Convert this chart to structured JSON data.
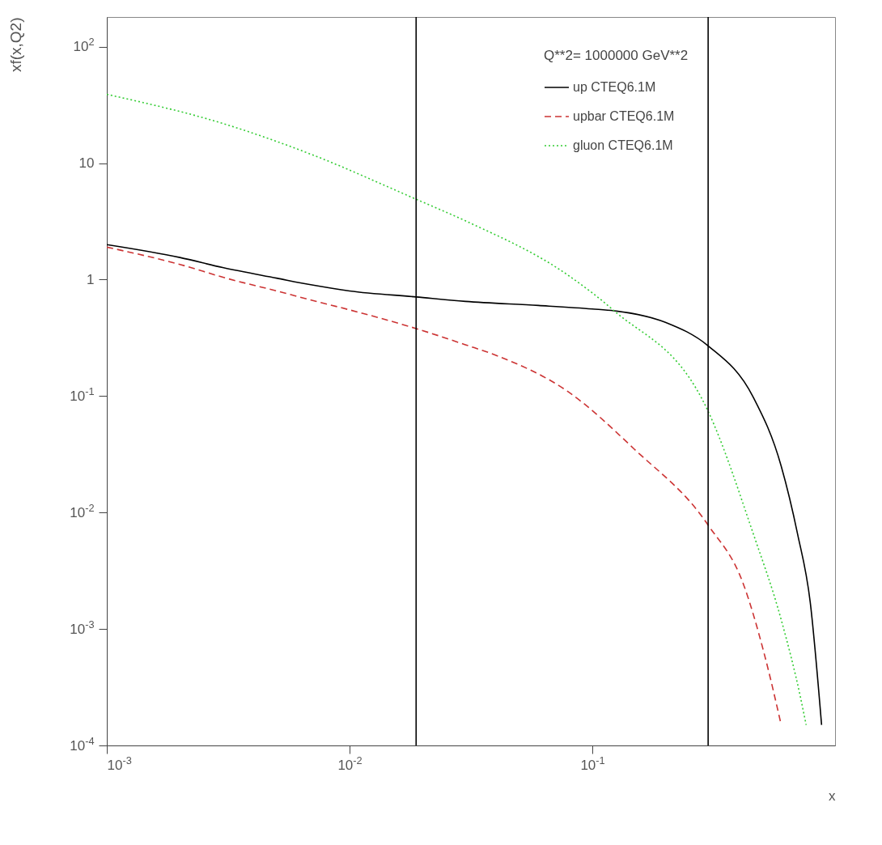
{
  "chart_data": {
    "type": "line",
    "xlabel": "x",
    "ylabel": "xf(x,Q2)",
    "legend_title": "Q**2=   1000000 GeV**2",
    "log": "xy",
    "grid": false,
    "legend": "top right",
    "marker": "none",
    "xlim": [
      0.001,
      1
    ],
    "xticks": [
      {
        "value": 0.001,
        "label": "10$^{-3}$"
      },
      {
        "value": 0.01,
        "label": "10$^{-2}$"
      },
      {
        "value": 0.1,
        "label": "10$^{-1}$"
      }
    ],
    "ylim": [
      0.0001,
      180
    ],
    "yticks": [
      {
        "value": 0.0001,
        "label": "10$^{-4}$"
      },
      {
        "value": 0.001,
        "label": "10$^{-3}$"
      },
      {
        "value": 0.01,
        "label": "10$^{-2}$"
      },
      {
        "value": 0.1,
        "label": "10$^{-1}$"
      },
      1,
      10,
      {
        "value": 100,
        "label": "10$^{2}$"
      }
    ],
    "x": [
      0.001,
      0.002,
      0.003,
      0.005,
      0.007,
      0.01,
      0.0188,
      0.03,
      0.06,
      0.1,
      0.123,
      0.2,
      0.3,
      0.46,
      0.6,
      0.7,
      0.79,
      0.88
    ],
    "series": [
      {
        "name": "up        CTEQ6.1M",
        "color": "#000000",
        "line_style": "solid",
        "values": [
          2.0,
          1.55,
          1.27,
          1.03,
          0.9,
          0.8,
          0.71,
          0.65,
          0.6,
          0.56,
          0.54,
          0.43,
          0.27,
          0.098,
          0.025,
          0.0066,
          0.0017,
          0.00015
        ]
      },
      {
        "name": "upbar     CTEQ6.1M",
        "color": "#cc3333",
        "line_style": "dashed",
        "x": [
          0.001,
          0.002,
          0.0031,
          0.005,
          0.0071,
          0.01,
          0.0188,
          0.03,
          0.041,
          0.079,
          0.149,
          0.3,
          0.42,
          0.51,
          0.6
        ],
        "values": [
          1.9,
          1.35,
          1.03,
          0.8,
          0.66,
          0.55,
          0.38,
          0.276,
          0.22,
          0.11,
          0.035,
          0.0078,
          0.0024,
          0.00062,
          0.00015
        ]
      },
      {
        "name": "gluon     CTEQ6.1M",
        "color": "#33cc33",
        "line_style": "dotted",
        "x": [
          0.001,
          0.0031,
          0.0071,
          0.0188,
          0.03,
          0.079,
          0.123,
          0.3,
          0.46,
          0.6,
          0.72,
          0.76
        ],
        "values": [
          39,
          21.5,
          11.7,
          4.9,
          3.2,
          1.1,
          0.54,
          0.074,
          0.0066,
          0.0012,
          0.00026,
          0.00015
        ]
      }
    ],
    "ref_lines": [
      {
        "axis": "x",
        "value": 0.0188,
        "color": "#000000"
      },
      {
        "axis": "x",
        "value": 0.3,
        "color": "#000000"
      }
    ]
  }
}
